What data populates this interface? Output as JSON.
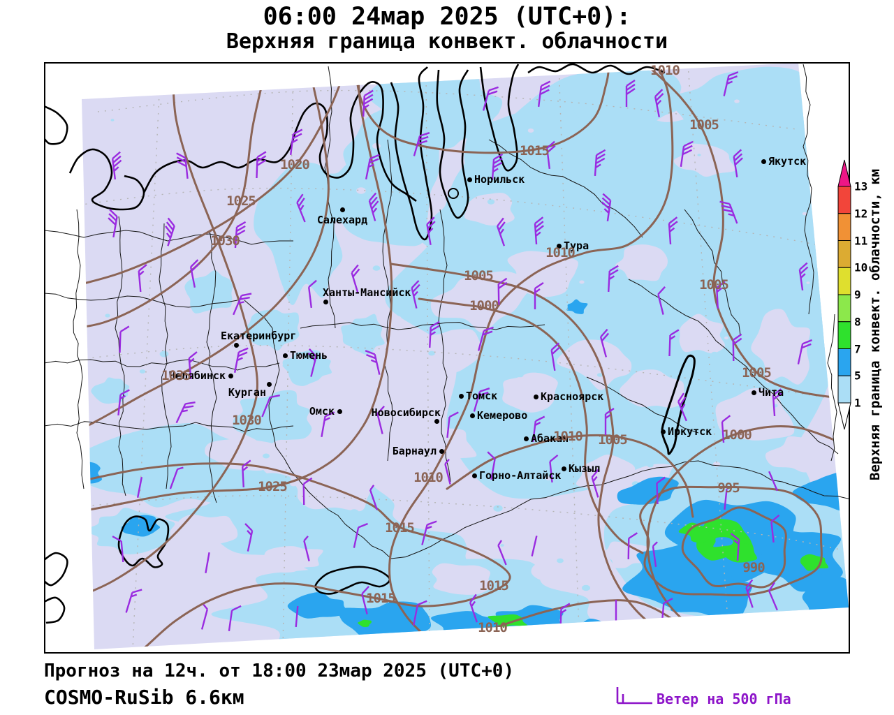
{
  "title": {
    "line1": "06:00 24мар 2025 (UTC+0):",
    "line2": "Верхняя граница конвект. облачности"
  },
  "footer": {
    "forecast": "Прогноз на 12ч. от 18:00 23мар 2025 (UTC+0)",
    "model": "COSMO-RuSib 6.6км"
  },
  "wind_legend": {
    "label": "Ветер на 500 гПа"
  },
  "colorbar": {
    "title": "Верхняя граница конвект. облачности, км",
    "tick_labels": [
      "13",
      "12",
      "11",
      "10",
      "9",
      "8",
      "7",
      "5",
      "1"
    ],
    "segment_colors": [
      "#f2453a",
      "#f19135",
      "#dcab32",
      "#dfdf2e",
      "#8ce84b",
      "#2fe12d",
      "#2aa5ef",
      "#abdef6"
    ],
    "top_arrow_color": "#ee1687",
    "bottom_arrow_color": "#ffffff"
  },
  "map": {
    "background_color": "#dbdaf3",
    "cloud_levels": {
      "km_1_5": "#abdef6",
      "km_5_7": "#2aa5ef",
      "km_7_8": "#2fe12d"
    },
    "isobar_color": "#8b6455",
    "wind_barb_color": "#9a2be0",
    "cities": [
      "Норильск",
      "Тура",
      "Якутск",
      "Салехард",
      "Ханты-Мансийск",
      "Екатеринбург",
      "Тюмень",
      "Челябинск",
      "Курган",
      "Омск",
      "Новосибирск",
      "Томск",
      "Кемерово",
      "Красноярск",
      "Абакан",
      "Барнаул",
      "Горно-Алтайск",
      "Кызыл",
      "Иркутск",
      "Чита"
    ],
    "isobar_labels": [
      "1020",
      "1025",
      "1030",
      "1035",
      "1030",
      "1025",
      "1015",
      "1010",
      "1005",
      "1010",
      "1005",
      "1000",
      "1005",
      "1005",
      "1010",
      "1010",
      "1005",
      "1000",
      "995",
      "990",
      "1015",
      "1015",
      "1015",
      "1010"
    ]
  }
}
